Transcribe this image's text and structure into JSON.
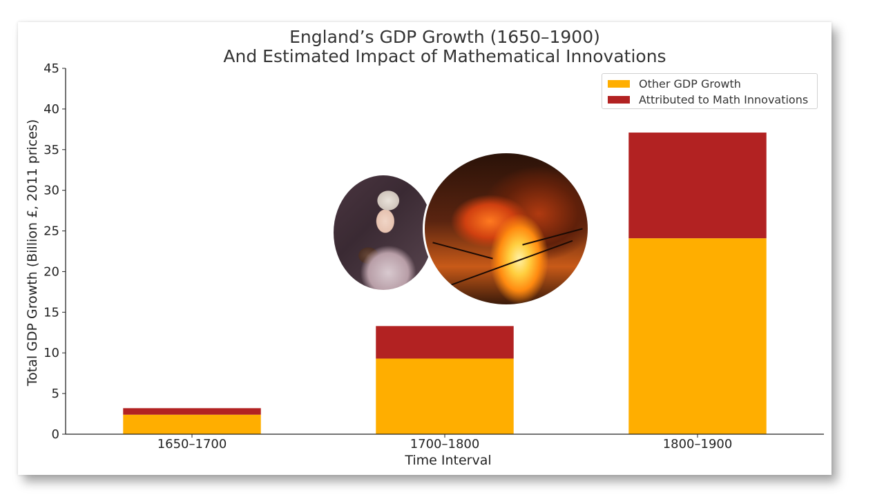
{
  "chart_data": {
    "type": "bar",
    "stacked": true,
    "title": "England’s GDP Growth (1650–1900)",
    "subtitle": "And Estimated Impact of Mathematical Innovations",
    "xlabel": "Time Interval",
    "ylabel": "Total GDP Growth (Billion £, 2011 prices)",
    "categories": [
      "1650–1700",
      "1700–1800",
      "1800–1900"
    ],
    "series": [
      {
        "name": "Other GDP Growth",
        "color": "#FFAE00",
        "values": [
          2.4,
          9.3,
          24.1
        ]
      },
      {
        "name": "Attributed to Math Innovations",
        "color": "#B22222",
        "values": [
          0.8,
          4.0,
          13.0
        ]
      }
    ],
    "ylim": [
      0,
      45
    ],
    "yticks": [
      0,
      5,
      10,
      15,
      20,
      25,
      30,
      35,
      40,
      45
    ],
    "grid": false,
    "legend_position": "top-right"
  },
  "images": [
    {
      "icon": "portrait-painting-image"
    },
    {
      "icon": "steel-furnace-image"
    }
  ]
}
